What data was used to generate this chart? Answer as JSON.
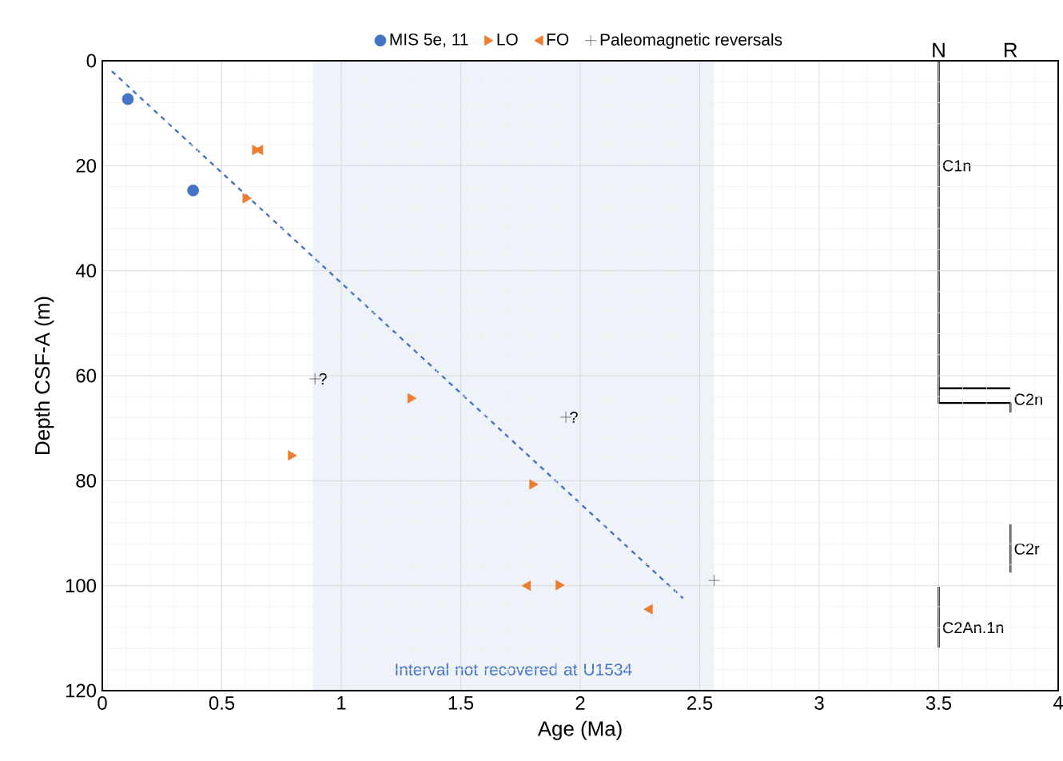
{
  "chart_data": {
    "type": "scatter",
    "xlabel": "Age (Ma)",
    "ylabel": "Depth CSF-A (m)",
    "xlim": [
      0,
      4
    ],
    "xticks": [
      0,
      0.5,
      1,
      1.5,
      2,
      2.5,
      3,
      3.5,
      4
    ],
    "ylim": [
      120,
      0
    ],
    "yticks": [
      0,
      20,
      40,
      60,
      80,
      100,
      120
    ],
    "grid": true,
    "legend": "top",
    "series": [
      {
        "name": "MIS 5e, 11",
        "color": "#4472c4",
        "marker": "circle",
        "x": [
          0.107,
          0.38
        ],
        "values": [
          7.3,
          24.7
        ]
      },
      {
        "name": "LO",
        "color": "#ed7d31",
        "marker": "triangle-right",
        "x": [
          0.64,
          0.6,
          0.79,
          1.29,
          1.8,
          1.91
        ],
        "values": [
          17,
          26.2,
          75.2,
          64.3,
          80.7,
          99.9
        ]
      },
      {
        "name": "FO",
        "color": "#ed7d31",
        "marker": "triangle-left",
        "x": [
          0.66,
          1.78,
          2.29
        ],
        "values": [
          17,
          100,
          104.5
        ]
      },
      {
        "name": "Paleomagnetic reversals",
        "color": "#595959",
        "marker": "cross",
        "x": [
          0.89,
          1.94,
          2.56
        ],
        "values": [
          60.6,
          67.9,
          99
        ]
      },
      {
        "type": "line",
        "color": "#4472c4",
        "line_style": "dashed",
        "marker": "none",
        "x": [
          0.04,
          2.43
        ],
        "values": [
          2,
          102.4
        ]
      },
      {
        "type": "line",
        "color": "#000000",
        "line_style": "solid",
        "marker": "none",
        "x": [
          3.5,
          3.5,
          3.8,
          3.8
        ],
        "values": [
          0,
          65.2,
          65.2,
          67
        ]
      },
      {
        "type": "line",
        "color": "#000000",
        "line_style": "solid",
        "marker": "none",
        "x": [
          3.5,
          3.8
        ],
        "values": [
          62.4,
          62.4
        ]
      },
      {
        "type": "line",
        "color": "#000000",
        "line_style": "solid",
        "marker": "none",
        "x": [
          3.8,
          3.8
        ],
        "values": [
          88.3,
          97.5
        ]
      },
      {
        "type": "line",
        "color": "#000000",
        "line_style": "solid",
        "marker": "none",
        "x": [
          3.5,
          3.5
        ],
        "values": [
          100.2,
          111.8
        ]
      }
    ],
    "bands": [
      {
        "axis": "x",
        "from": 0.88,
        "to": 2.56,
        "label": "Interval not recovered at U1534",
        "color": "#eef2f9"
      }
    ],
    "annotations": [
      {
        "text": "?",
        "x": 0.89,
        "y": 60.6
      },
      {
        "text": "?",
        "x": 1.94,
        "y": 67.9
      },
      "N",
      "R",
      {
        "text": "C1n",
        "x": 3.5,
        "y": 20
      },
      {
        "text": "C2n",
        "x": 3.8,
        "y": 64.5
      },
      {
        "text": "C2r",
        "x": 3.8,
        "y": 93
      },
      {
        "text": "C2An.1n",
        "x": 3.5,
        "y": 108
      }
    ]
  }
}
